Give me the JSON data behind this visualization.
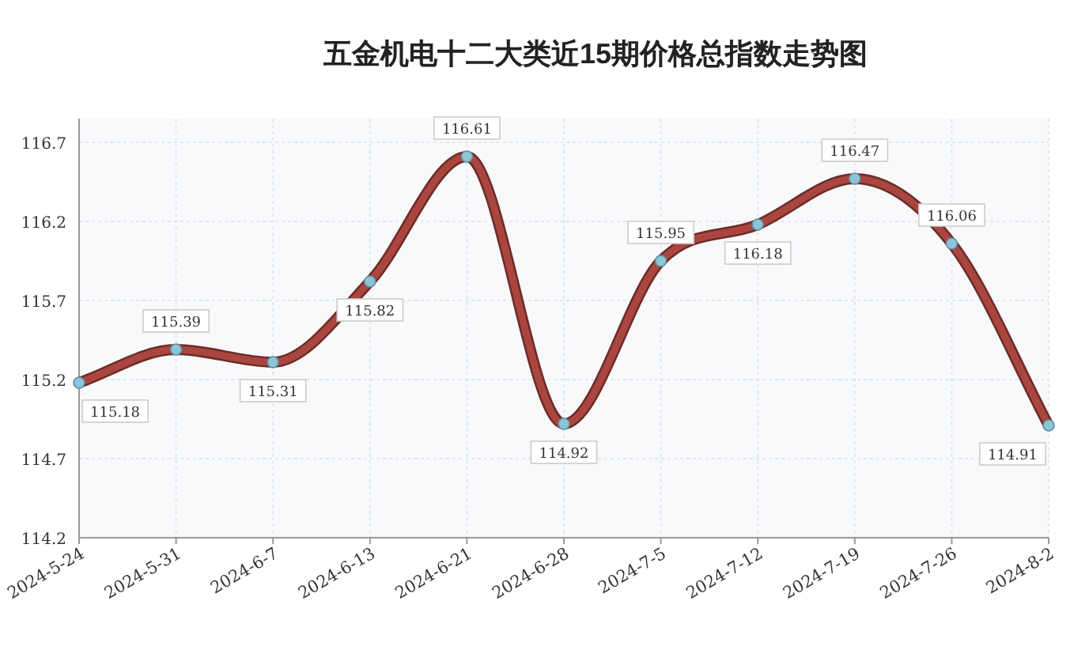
{
  "chart_data": {
    "type": "line",
    "title": "五金机电十二大类近15期价格总指数走势图",
    "categories": [
      "2024-5-24",
      "2024-5-31",
      "2024-6-7",
      "2024-6-13",
      "2024-6-21",
      "2024-6-28",
      "2024-7-5",
      "2024-7-12",
      "2024-7-19",
      "2024-7-26",
      "2024-8-2"
    ],
    "series": [
      {
        "color": "#a9463f",
        "values": [
          115.18,
          115.39,
          115.31,
          115.82,
          116.61,
          114.92,
          115.95,
          116.18,
          116.47,
          116.06,
          114.91
        ]
      }
    ],
    "ylim": [
      114.2,
      116.85
    ],
    "yticks": [
      114.2,
      114.7,
      115.2,
      115.7,
      116.2,
      116.7
    ],
    "data_labels": true,
    "marker": "circle",
    "grid": true,
    "line_style": "solid"
  }
}
